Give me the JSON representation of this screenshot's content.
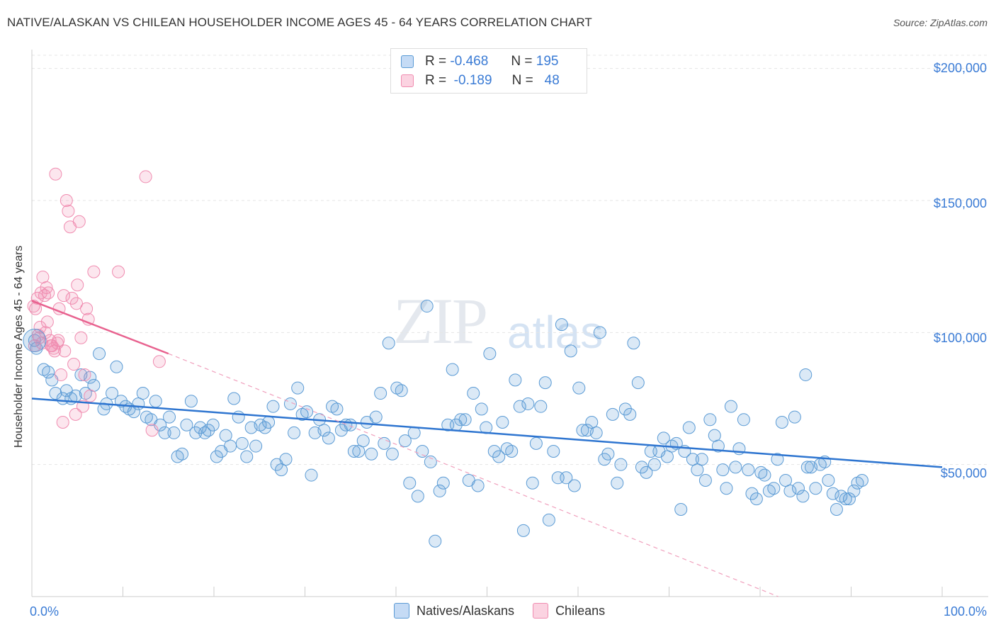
{
  "header": {
    "title": "NATIVE/ALASKAN VS CHILEAN HOUSEHOLDER INCOME AGES 45 - 64 YEARS CORRELATION CHART",
    "source": "Source: ZipAtlas.com"
  },
  "watermark": {
    "zip": "ZIP",
    "atlas": "atlas"
  },
  "stats": {
    "row1": {
      "r_label": "R =",
      "r_value": "-0.468",
      "n_label": "N =",
      "n_value": "195"
    },
    "row2": {
      "r_label": "R =",
      "r_value": "-0.189",
      "n_label": "N =",
      "n_value": "48"
    }
  },
  "legend": {
    "natives": "Natives/Alaskans",
    "chileans": "Chileans"
  },
  "colors": {
    "blue": "#5b9bd5",
    "blue_line": "#2e75d0",
    "pink": "#f08cb0",
    "pink_line": "#e8628f",
    "axis_text": "#3a7bd5"
  },
  "chart_data": {
    "type": "scatter",
    "title": "NATIVE/ALASKAN VS CHILEAN HOUSEHOLDER INCOME AGES 45 - 64 YEARS CORRELATION CHART",
    "xlabel": "",
    "ylabel": "Householder Income Ages 45 - 64 years",
    "xlim": [
      0,
      100
    ],
    "ylim": [
      0,
      205000
    ],
    "x_tick_labels": [
      "0.0%",
      "100.0%"
    ],
    "y_ticks": [
      50000,
      100000,
      150000,
      200000
    ],
    "y_tick_labels": [
      "$50,000",
      "$100,000",
      "$150,000",
      "$200,000"
    ],
    "grid": true,
    "legend_position": "bottom",
    "series": [
      {
        "name": "Natives/Alaskans",
        "color": "#5b9bd5",
        "trend": {
          "x": [
            0,
            100
          ],
          "y": [
            75000,
            49000
          ]
        },
        "points": [
          [
            0.3,
            97000
          ],
          [
            0.5,
            94000
          ],
          [
            1.3,
            86000
          ],
          [
            1.8,
            85000
          ],
          [
            2.2,
            82000
          ],
          [
            2.6,
            77000
          ],
          [
            3.4,
            75000
          ],
          [
            3.8,
            78000
          ],
          [
            4.3,
            75000
          ],
          [
            4.8,
            76000
          ],
          [
            5.4,
            84000
          ],
          [
            5.9,
            77000
          ],
          [
            6.4,
            83000
          ],
          [
            6.8,
            80000
          ],
          [
            7.4,
            92000
          ],
          [
            7.9,
            71000
          ],
          [
            8.2,
            73000
          ],
          [
            8.8,
            77000
          ],
          [
            9.3,
            87000
          ],
          [
            9.8,
            74000
          ],
          [
            10.3,
            72000
          ],
          [
            10.7,
            71000
          ],
          [
            11.2,
            70000
          ],
          [
            11.7,
            73000
          ],
          [
            12.2,
            77000
          ],
          [
            12.6,
            68000
          ],
          [
            13.1,
            67000
          ],
          [
            13.6,
            74000
          ],
          [
            14.1,
            65000
          ],
          [
            14.6,
            62000
          ],
          [
            15.1,
            68000
          ],
          [
            15.6,
            62000
          ],
          [
            16.0,
            53000
          ],
          [
            16.5,
            54000
          ],
          [
            17.0,
            65000
          ],
          [
            17.5,
            74000
          ],
          [
            18.0,
            62000
          ],
          [
            18.5,
            64000
          ],
          [
            19.0,
            62000
          ],
          [
            19.4,
            63000
          ],
          [
            19.9,
            65000
          ],
          [
            20.3,
            53000
          ],
          [
            20.8,
            55000
          ],
          [
            21.3,
            61000
          ],
          [
            21.8,
            57000
          ],
          [
            22.2,
            75000
          ],
          [
            22.7,
            68000
          ],
          [
            23.1,
            58000
          ],
          [
            23.6,
            53000
          ],
          [
            24.1,
            64000
          ],
          [
            24.6,
            57000
          ],
          [
            25.1,
            65000
          ],
          [
            25.6,
            64000
          ],
          [
            26.0,
            66000
          ],
          [
            26.5,
            72000
          ],
          [
            26.9,
            50000
          ],
          [
            27.4,
            48000
          ],
          [
            27.9,
            52000
          ],
          [
            28.4,
            73000
          ],
          [
            28.8,
            62000
          ],
          [
            29.2,
            79000
          ],
          [
            29.7,
            69000
          ],
          [
            30.2,
            70000
          ],
          [
            30.7,
            46000
          ],
          [
            31.1,
            62000
          ],
          [
            31.6,
            67000
          ],
          [
            32.1,
            63000
          ],
          [
            32.6,
            60000
          ],
          [
            33.0,
            72000
          ],
          [
            33.5,
            71000
          ],
          [
            34.0,
            63000
          ],
          [
            34.5,
            65000
          ],
          [
            35.0,
            65000
          ],
          [
            35.4,
            55000
          ],
          [
            35.9,
            55000
          ],
          [
            36.4,
            59000
          ],
          [
            36.8,
            66000
          ],
          [
            37.3,
            54000
          ],
          [
            37.8,
            68000
          ],
          [
            38.3,
            77000
          ],
          [
            38.7,
            58000
          ],
          [
            39.2,
            96000
          ],
          [
            39.6,
            54000
          ],
          [
            40.1,
            79000
          ],
          [
            40.6,
            78000
          ],
          [
            41.0,
            59000
          ],
          [
            41.5,
            43000
          ],
          [
            42.0,
            62000
          ],
          [
            42.4,
            38000
          ],
          [
            42.9,
            55000
          ],
          [
            43.4,
            110000
          ],
          [
            43.8,
            51000
          ],
          [
            44.3,
            21000
          ],
          [
            44.8,
            40000
          ],
          [
            45.2,
            43000
          ],
          [
            45.7,
            65000
          ],
          [
            46.2,
            86000
          ],
          [
            46.6,
            65000
          ],
          [
            47.1,
            67000
          ],
          [
            47.6,
            67000
          ],
          [
            48.0,
            44000
          ],
          [
            48.5,
            77000
          ],
          [
            49.0,
            42000
          ],
          [
            49.4,
            71000
          ],
          [
            49.9,
            64000
          ],
          [
            50.3,
            92000
          ],
          [
            50.8,
            55000
          ],
          [
            51.3,
            53000
          ],
          [
            51.7,
            66000
          ],
          [
            52.2,
            56000
          ],
          [
            52.7,
            55000
          ],
          [
            53.1,
            82000
          ],
          [
            53.6,
            72000
          ],
          [
            54.0,
            25000
          ],
          [
            54.5,
            73000
          ],
          [
            55.0,
            43000
          ],
          [
            55.4,
            58000
          ],
          [
            55.9,
            72000
          ],
          [
            56.4,
            81000
          ],
          [
            56.8,
            29000
          ],
          [
            57.3,
            55000
          ],
          [
            57.8,
            45000
          ],
          [
            58.2,
            103000
          ],
          [
            58.7,
            45000
          ],
          [
            59.2,
            93000
          ],
          [
            59.6,
            42000
          ],
          [
            60.1,
            79000
          ],
          [
            60.5,
            63000
          ],
          [
            61.0,
            63000
          ],
          [
            61.5,
            66000
          ],
          [
            62.0,
            62000
          ],
          [
            62.4,
            100000
          ],
          [
            62.9,
            52000
          ],
          [
            63.3,
            54000
          ],
          [
            63.8,
            69000
          ],
          [
            64.3,
            43000
          ],
          [
            64.7,
            50000
          ],
          [
            65.2,
            71000
          ],
          [
            65.7,
            69000
          ],
          [
            66.1,
            96000
          ],
          [
            66.6,
            81000
          ],
          [
            67.0,
            49000
          ],
          [
            67.5,
            47000
          ],
          [
            68.0,
            55000
          ],
          [
            68.4,
            50000
          ],
          [
            68.9,
            55000
          ],
          [
            69.4,
            60000
          ],
          [
            69.8,
            53000
          ],
          [
            70.3,
            57000
          ],
          [
            70.8,
            58000
          ],
          [
            71.3,
            33000
          ],
          [
            71.7,
            55000
          ],
          [
            72.2,
            64000
          ],
          [
            72.6,
            52000
          ],
          [
            73.1,
            48000
          ],
          [
            73.6,
            52000
          ],
          [
            74.0,
            44000
          ],
          [
            74.5,
            67000
          ],
          [
            75.0,
            61000
          ],
          [
            75.4,
            57000
          ],
          [
            75.9,
            48000
          ],
          [
            76.3,
            41000
          ],
          [
            76.8,
            72000
          ],
          [
            77.3,
            49000
          ],
          [
            77.7,
            56000
          ],
          [
            78.2,
            67000
          ],
          [
            78.7,
            48000
          ],
          [
            79.1,
            39000
          ],
          [
            79.6,
            37000
          ],
          [
            80.1,
            47000
          ],
          [
            80.5,
            46000
          ],
          [
            81.0,
            40000
          ],
          [
            81.5,
            41000
          ],
          [
            81.9,
            52000
          ],
          [
            82.4,
            66000
          ],
          [
            82.8,
            44000
          ],
          [
            83.3,
            40000
          ],
          [
            83.8,
            68000
          ],
          [
            84.2,
            41000
          ],
          [
            84.7,
            38000
          ],
          [
            85.2,
            49000
          ],
          [
            85.6,
            49000
          ],
          [
            86.1,
            41000
          ],
          [
            86.6,
            50000
          ],
          [
            87.1,
            51000
          ],
          [
            87.5,
            44000
          ],
          [
            88.0,
            39000
          ],
          [
            88.4,
            33000
          ],
          [
            88.9,
            38000
          ],
          [
            89.4,
            37000
          ],
          [
            89.8,
            37000
          ],
          [
            90.3,
            40000
          ],
          [
            90.7,
            43000
          ],
          [
            91.2,
            44000
          ],
          [
            85.0,
            84000
          ]
        ]
      },
      {
        "name": "Chileans",
        "color": "#f08cb0",
        "trend": {
          "x": [
            0,
            15
          ],
          "y": [
            112000,
            92000
          ]
        },
        "trend_dashed": {
          "x": [
            15,
            82
          ],
          "y": [
            92000,
            0
          ]
        },
        "points": [
          [
            0.2,
            110000
          ],
          [
            0.4,
            109000
          ],
          [
            0.6,
            113000
          ],
          [
            0.8,
            98000
          ],
          [
            1.0,
            115000
          ],
          [
            1.2,
            121000
          ],
          [
            1.4,
            114000
          ],
          [
            1.6,
            117000
          ],
          [
            1.8,
            115000
          ],
          [
            2.0,
            97000
          ],
          [
            2.2,
            95000
          ],
          [
            2.4,
            94000
          ],
          [
            2.6,
            160000
          ],
          [
            2.8,
            96000
          ],
          [
            3.0,
            109000
          ],
          [
            3.2,
            84000
          ],
          [
            3.4,
            66000
          ],
          [
            3.6,
            93000
          ],
          [
            3.8,
            150000
          ],
          [
            4.0,
            146000
          ],
          [
            4.2,
            140000
          ],
          [
            4.4,
            113000
          ],
          [
            4.6,
            88000
          ],
          [
            4.8,
            69000
          ],
          [
            5.0,
            118000
          ],
          [
            5.2,
            142000
          ],
          [
            5.4,
            98000
          ],
          [
            5.6,
            72000
          ],
          [
            5.8,
            84000
          ],
          [
            6.0,
            109000
          ],
          [
            6.2,
            105000
          ],
          [
            6.4,
            76000
          ],
          [
            6.8,
            123000
          ],
          [
            9.5,
            123000
          ],
          [
            12.5,
            159000
          ],
          [
            13.2,
            63000
          ],
          [
            14.0,
            89000
          ],
          [
            1.5,
            100000
          ],
          [
            0.9,
            102000
          ],
          [
            2.1,
            95000
          ],
          [
            2.9,
            97000
          ],
          [
            0.7,
            99000
          ],
          [
            1.7,
            104000
          ],
          [
            3.5,
            114000
          ],
          [
            4.9,
            111000
          ],
          [
            2.5,
            93000
          ],
          [
            1.1,
            96000
          ],
          [
            0.3,
            95000
          ]
        ]
      }
    ]
  }
}
